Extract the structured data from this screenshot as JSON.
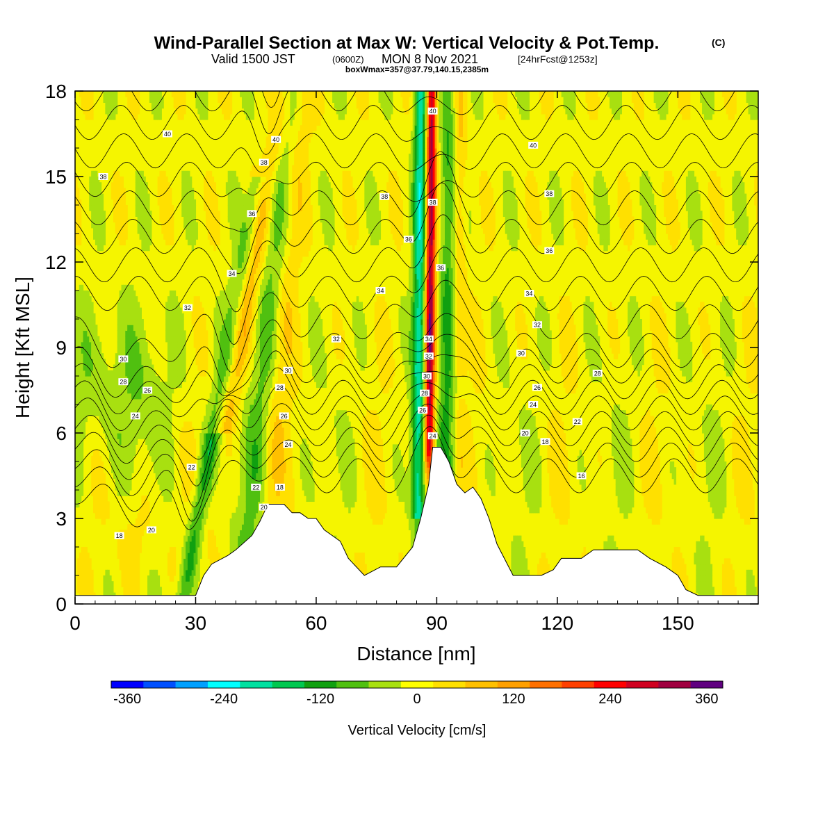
{
  "chart_data": {
    "type": "heatmap",
    "title": "Wind-Parallel Section at Max W: Vertical Velocity & Pot.Temp.",
    "title_mark": "(C)",
    "subtitle_prefix": "Valid 1500 JST",
    "subtitle_zulu": "(0600Z)",
    "subtitle_date": "MON 8 Nov 2021",
    "subtitle_fcst": "[24hrFcst@1253z]",
    "subtitle2": "boxWmax=357@37.79,140.15,2385m",
    "xlabel": "Distance [nm]",
    "ylabel": "Height [Kft MSL]",
    "xlim": [
      0,
      170
    ],
    "ylim": [
      0,
      18
    ],
    "x_ticks": [
      "0",
      "30",
      "60",
      "90",
      "120",
      "150"
    ],
    "y_ticks": [
      "0",
      "3",
      "6",
      "9",
      "12",
      "15",
      "18"
    ],
    "x_tick_values": [
      0,
      30,
      60,
      90,
      120,
      150
    ],
    "y_tick_values": [
      0,
      3,
      6,
      9,
      12,
      15,
      18
    ],
    "colorbar": {
      "label": "Vertical Velocity [cm/s]",
      "min": -380,
      "max": 380,
      "tick_labels": [
        "-360",
        "-240",
        "-120",
        "0",
        "120",
        "240",
        "360"
      ],
      "tick_values": [
        -360,
        -240,
        -120,
        0,
        120,
        240,
        360
      ],
      "colors": [
        "#0000ff",
        "#0050ff",
        "#00a0ff",
        "#00ffff",
        "#00e0a0",
        "#00c850",
        "#10a010",
        "#50c010",
        "#a8e010",
        "#ffff00",
        "#ffe000",
        "#ffc000",
        "#ffa000",
        "#ff7000",
        "#ff4000",
        "#ff0000",
        "#d00020",
        "#a00040",
        "#600080"
      ]
    },
    "terrain_profile": {
      "x": [
        0,
        30,
        32,
        34,
        38,
        40,
        44,
        46,
        48,
        52,
        54,
        56,
        58,
        60,
        62,
        64,
        66,
        68,
        72,
        76,
        80,
        84,
        86,
        88,
        89,
        91,
        93,
        95,
        97,
        99,
        101,
        103,
        105,
        109,
        112,
        116,
        119,
        121,
        124,
        126,
        129,
        134,
        140,
        143,
        147,
        150,
        152,
        155,
        170
      ],
      "y": [
        0.3,
        0.3,
        1.0,
        1.4,
        1.7,
        1.9,
        2.4,
        2.9,
        3.5,
        3.5,
        3.2,
        3.2,
        3.0,
        3.0,
        2.6,
        2.4,
        2.2,
        1.6,
        1.0,
        1.3,
        1.3,
        2.0,
        3.0,
        4.2,
        5.5,
        5.5,
        5.0,
        4.2,
        3.9,
        4.1,
        3.7,
        3.0,
        2.1,
        1.0,
        1.0,
        1.0,
        1.2,
        1.6,
        1.6,
        1.6,
        1.9,
        1.9,
        1.9,
        1.6,
        1.3,
        1.0,
        0.5,
        0.3,
        0.3
      ]
    },
    "theta_contour_labels": [
      {
        "x": 23,
        "y": 16.5,
        "value": "40"
      },
      {
        "x": 50,
        "y": 16.3,
        "value": "40"
      },
      {
        "x": 89,
        "y": 17.3,
        "value": "40"
      },
      {
        "x": 114,
        "y": 16.1,
        "value": "40"
      },
      {
        "x": 7,
        "y": 15.0,
        "value": "38"
      },
      {
        "x": 47,
        "y": 15.5,
        "value": "38"
      },
      {
        "x": 77,
        "y": 14.3,
        "value": "38"
      },
      {
        "x": 89,
        "y": 14.1,
        "value": "38"
      },
      {
        "x": 118,
        "y": 14.4,
        "value": "38"
      },
      {
        "x": 44,
        "y": 13.7,
        "value": "36"
      },
      {
        "x": 83,
        "y": 12.8,
        "value": "36"
      },
      {
        "x": 91,
        "y": 11.8,
        "value": "36"
      },
      {
        "x": 118,
        "y": 12.4,
        "value": "36"
      },
      {
        "x": 39,
        "y": 11.6,
        "value": "34"
      },
      {
        "x": 76,
        "y": 11.0,
        "value": "34"
      },
      {
        "x": 113,
        "y": 10.9,
        "value": "34"
      },
      {
        "x": 28,
        "y": 10.4,
        "value": "32"
      },
      {
        "x": 65,
        "y": 9.3,
        "value": "32"
      },
      {
        "x": 88,
        "y": 9.3,
        "value": "34"
      },
      {
        "x": 115,
        "y": 9.8,
        "value": "32"
      },
      {
        "x": 12,
        "y": 8.6,
        "value": "30"
      },
      {
        "x": 53,
        "y": 8.2,
        "value": "30"
      },
      {
        "x": 88,
        "y": 8.7,
        "value": "32"
      },
      {
        "x": 111,
        "y": 8.8,
        "value": "30"
      },
      {
        "x": 12,
        "y": 7.8,
        "value": "28"
      },
      {
        "x": 51,
        "y": 7.6,
        "value": "28"
      },
      {
        "x": 87.5,
        "y": 8.0,
        "value": "30"
      },
      {
        "x": 130,
        "y": 8.1,
        "value": "28"
      },
      {
        "x": 18,
        "y": 7.5,
        "value": "26"
      },
      {
        "x": 52,
        "y": 6.6,
        "value": "26"
      },
      {
        "x": 87,
        "y": 7.4,
        "value": "28"
      },
      {
        "x": 115,
        "y": 7.6,
        "value": "26"
      },
      {
        "x": 15,
        "y": 6.6,
        "value": "24"
      },
      {
        "x": 53,
        "y": 5.6,
        "value": "24"
      },
      {
        "x": 86.5,
        "y": 6.8,
        "value": "26"
      },
      {
        "x": 114,
        "y": 7.0,
        "value": "24"
      },
      {
        "x": 29,
        "y": 4.8,
        "value": "22"
      },
      {
        "x": 45,
        "y": 4.1,
        "value": "22"
      },
      {
        "x": 89,
        "y": 5.9,
        "value": "24"
      },
      {
        "x": 125,
        "y": 6.4,
        "value": "22"
      },
      {
        "x": 19,
        "y": 2.6,
        "value": "20"
      },
      {
        "x": 47,
        "y": 3.4,
        "value": "20"
      },
      {
        "x": 112,
        "y": 6.0,
        "value": "20"
      },
      {
        "x": 11,
        "y": 2.4,
        "value": "18"
      },
      {
        "x": 51,
        "y": 4.1,
        "value": "18"
      },
      {
        "x": 117,
        "y": 5.7,
        "value": "18"
      },
      {
        "x": 126,
        "y": 4.5,
        "value": "16"
      }
    ]
  }
}
